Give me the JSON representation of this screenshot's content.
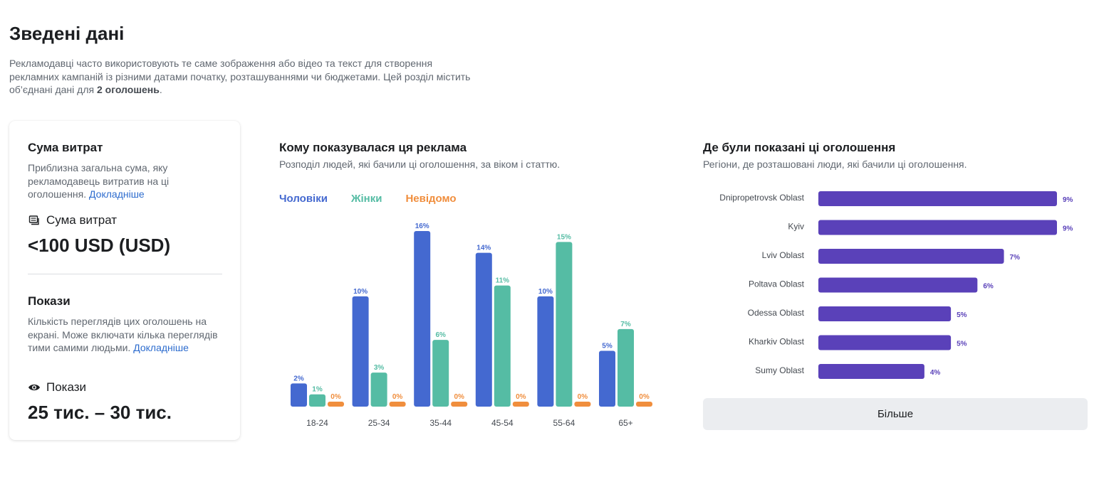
{
  "header": {
    "title": "Зведені дані",
    "intro_text": "Рекламодавці часто використовують те саме зображення або відео та текст для створення рекламних кампаній із різними датами початку, розташуваннями чи бюджетами. Цей розділ містить об’єднані дані для ",
    "intro_bold": "2 оголошень",
    "intro_end": "."
  },
  "summary_card": {
    "spend": {
      "title": "Сума витрат",
      "description": "Приблизна загальна сума, яку рекламодавець витратив на ці оголошення.",
      "link": "Докладніше",
      "label": "Сума витрат",
      "icon": "money-stack-icon",
      "value": "<100 USD (USD)"
    },
    "impressions": {
      "title": "Покази",
      "description": "Кількість переглядів цих оголошень на екрані. Може включати кілька переглядів тими самими людьми.",
      "link": "Докладніше",
      "label": "Покази",
      "icon": "eye-icon",
      "value": "25 тис. – 30 тис."
    }
  },
  "audience": {
    "title": "Кому показувалася ця реклама",
    "subtitle": "Розподіл людей, які бачили ці оголошення, за віком і статтю.",
    "legend": {
      "male": "Чоловіки",
      "female": "Жінки",
      "unknown": "Невідомо"
    }
  },
  "regions": {
    "title": "Де були показані ці оголошення",
    "subtitle": "Регіони, де розташовані люди, які бачили ці оголошення.",
    "more_button": "Більше"
  },
  "colors": {
    "male": "#4469d0",
    "female": "#55bca4",
    "unknown": "#f08e3d",
    "region_bar": "#5a41b9",
    "region_label": "#5a41b9"
  },
  "chart_data": [
    {
      "type": "bar",
      "categories": [
        "18-24",
        "25-34",
        "35-44",
        "45-54",
        "55-64",
        "65+"
      ],
      "series": [
        {
          "name": "Чоловіки",
          "values": [
            2,
            10,
            16,
            14,
            10,
            5
          ]
        },
        {
          "name": "Жінки",
          "values": [
            1,
            3,
            6,
            11,
            15,
            7
          ]
        },
        {
          "name": "Невідомо",
          "values": [
            0,
            0,
            0,
            0,
            0,
            0
          ]
        }
      ],
      "value_suffix": "%",
      "ylim": [
        0,
        16
      ],
      "grid": false,
      "legend_position": "top-left"
    },
    {
      "type": "bar",
      "orientation": "horizontal",
      "categories": [
        "Dnipropetrovsk Oblast",
        "Kyiv",
        "Lviv Oblast",
        "Poltava Oblast",
        "Odessa Oblast",
        "Kharkiv Oblast",
        "Sumy Oblast"
      ],
      "values": [
        9,
        9,
        7,
        6,
        5,
        5,
        4
      ],
      "value_suffix": "%",
      "xlim": [
        0,
        9
      ],
      "grid": false
    }
  ]
}
